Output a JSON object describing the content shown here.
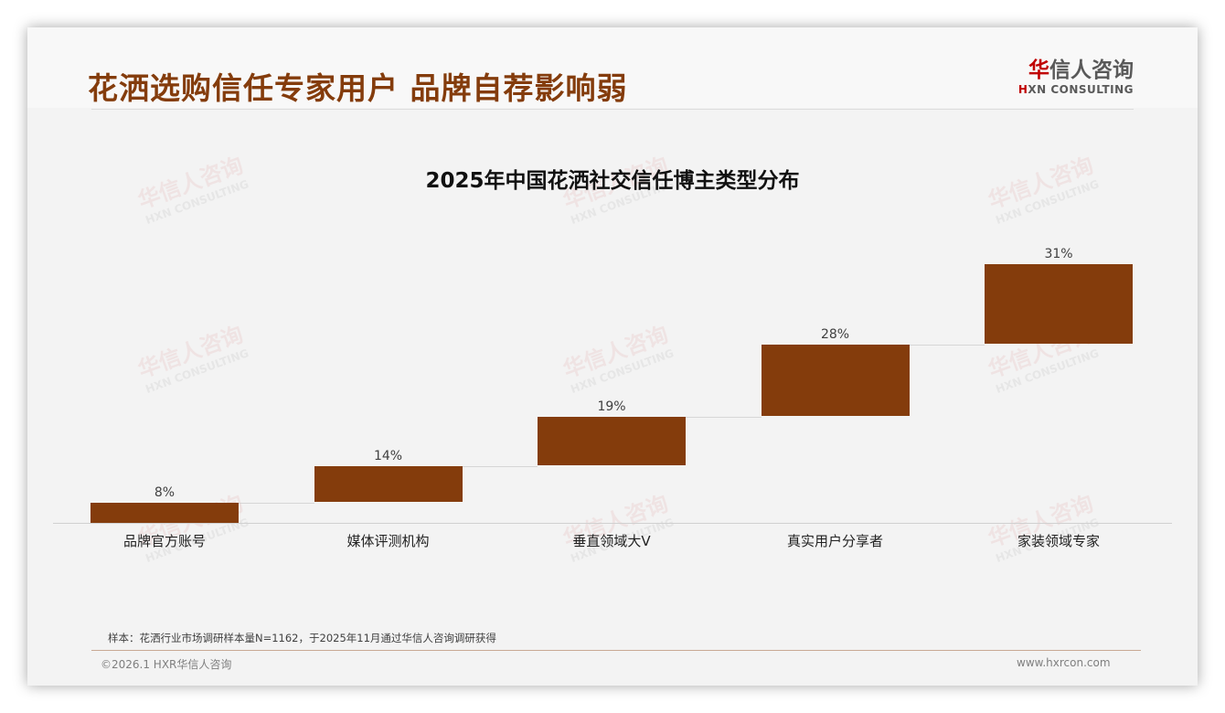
{
  "header": {
    "title": "花洒选购信任专家用户 品牌自荐影响弱",
    "logo_cn_mark": "华",
    "logo_cn_rest": "信人咨询",
    "logo_en_mark": "H",
    "logo_en_rest": "XN CONSULTING"
  },
  "watermark": {
    "cn": "华信人咨询",
    "en": "HXN CONSULTING"
  },
  "colors": {
    "title": "#843c0c",
    "bar": "#843c0c",
    "logo_accent": "#c00000"
  },
  "chart_data": {
    "type": "bar",
    "subtype": "waterfall-style stepped bars",
    "title": "2025年中国花洒社交信任博主类型分布",
    "categories": [
      "品牌官方账号",
      "媒体评测机构",
      "垂直领域大V",
      "真实用户分享者",
      "家装领域专家"
    ],
    "values": [
      8,
      14,
      19,
      28,
      31
    ],
    "value_labels": [
      "8%",
      "14%",
      "19%",
      "28%",
      "31%"
    ],
    "unit": "%",
    "xlabel": "",
    "ylabel": "",
    "grid": false,
    "legend": "none"
  },
  "footer": {
    "note": "样本：花洒行业市场调研样本量N=1162，于2025年11月通过华信人咨询调研获得",
    "copyright": "©2026.1 HXR华信人咨询",
    "website": "www.hxrcon.com"
  }
}
